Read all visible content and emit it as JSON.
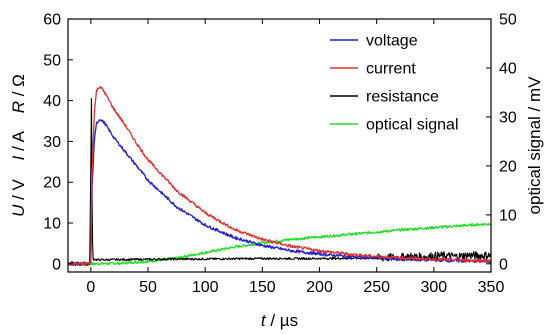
{
  "chart_data": {
    "type": "line",
    "xlabel": "t / µs",
    "xlabel_parts": {
      "var": "t",
      "unit": " / µs"
    },
    "ylabel_left": "U / V   I / A   R / Ω",
    "ylabel_left_parts": [
      {
        "var": "U",
        "unit": " / V"
      },
      {
        "var": "I",
        "unit": " / A"
      },
      {
        "var": "R",
        "unit": " / Ω"
      }
    ],
    "ylabel_right": "optical signal / mV",
    "xlim": [
      -20,
      350
    ],
    "ylim_left": [
      -2,
      60
    ],
    "ylim_right": [
      -1.667,
      50
    ],
    "x_ticks": [
      0,
      50,
      100,
      150,
      200,
      250,
      300,
      350
    ],
    "y_ticks_left": [
      0,
      10,
      20,
      30,
      40,
      50,
      60
    ],
    "y_ticks_right": [
      0,
      10,
      20,
      30,
      40,
      50
    ],
    "grid": false,
    "legend_position": "top-right",
    "series": [
      {
        "name": "voltage",
        "axis": "left",
        "color": "#2222cc",
        "x": [
          -20,
          -1,
          0,
          1,
          3,
          5,
          8,
          12,
          20,
          30,
          40,
          50,
          75,
          100,
          125,
          150,
          175,
          200,
          225,
          250,
          275,
          300,
          325,
          350
        ],
        "y": [
          0,
          0,
          0.5,
          18,
          30,
          34.5,
          35.5,
          34.5,
          31,
          27.5,
          24,
          20.5,
          14,
          9.5,
          6.5,
          4.5,
          3.2,
          2.4,
          1.8,
          1.4,
          1.1,
          0.9,
          0.7,
          0.6
        ]
      },
      {
        "name": "current",
        "axis": "left",
        "color": "#e03030",
        "x": [
          -20,
          -1,
          0,
          1,
          3,
          5,
          8,
          12,
          20,
          30,
          40,
          50,
          75,
          100,
          125,
          150,
          175,
          200,
          225,
          250,
          275,
          300,
          325,
          350
        ],
        "y": [
          0,
          0,
          0.5,
          22,
          37,
          42.5,
          43.5,
          42,
          38,
          34,
          29.5,
          25.5,
          18,
          12.5,
          8.5,
          6,
          4.3,
          3.2,
          2.4,
          1.8,
          1.4,
          1.1,
          0.9,
          0.7
        ]
      },
      {
        "name": "resistance",
        "axis": "left",
        "color": "#000000",
        "x": [
          -20,
          -15,
          -10,
          -5,
          -2,
          -1,
          0,
          0.3,
          1,
          1.5,
          2,
          5,
          10,
          50,
          100,
          150,
          200,
          250,
          260,
          270,
          280,
          290,
          300,
          310,
          320,
          330,
          340,
          350
        ],
        "y": [
          0,
          0,
          0,
          0,
          0,
          0,
          25,
          49,
          20,
          5,
          1.2,
          1.0,
          1.0,
          1.1,
          1.2,
          1.3,
          1.3,
          1.4,
          1.5,
          1.6,
          1.8,
          1.7,
          1.9,
          2.0,
          1.8,
          2.1,
          2.0,
          2.1
        ]
      },
      {
        "name": "optical signal",
        "axis": "right",
        "color": "#22dd22",
        "x": [
          -20,
          0,
          25,
          50,
          75,
          100,
          125,
          150,
          175,
          200,
          225,
          250,
          275,
          300,
          325,
          350
        ],
        "y": [
          0,
          0,
          0.1,
          0.5,
          1.2,
          2.3,
          3.4,
          4.3,
          5.0,
          5.5,
          6.0,
          6.5,
          7.0,
          7.4,
          7.8,
          8.2
        ]
      }
    ]
  }
}
